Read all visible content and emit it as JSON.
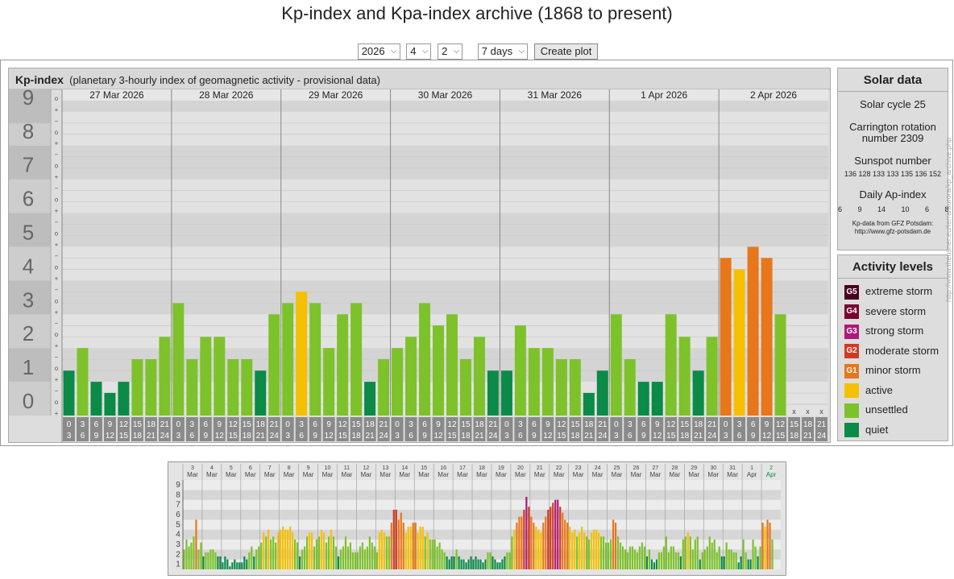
{
  "page_title": "Kp-index and Kpa-index archive (1868 to present)",
  "controls": {
    "year": "2026",
    "month": "4",
    "day": "2",
    "range": "7 days",
    "submit_label": "Create plot"
  },
  "kp_header": {
    "title": "Kp-index",
    "subtitle": "(planetary 3-hourly index of geomagnetic activity - provisional data)"
  },
  "colors": {
    "quiet": "#0b8a48",
    "unsettled": "#7dc22a",
    "active": "#f5c000",
    "minor": "#e8761a",
    "moderate": "#d23a20",
    "strong": "#b01878",
    "severe": "#7a0030",
    "extreme": "#4a0020"
  },
  "chart_data": {
    "type": "bar",
    "ylim": [
      0,
      9
    ],
    "y_ticks": [
      "0",
      "1",
      "2",
      "3",
      "4",
      "5",
      "6",
      "7",
      "8",
      "9"
    ],
    "sub_ticks": [
      "+",
      "o",
      "−"
    ],
    "days": [
      "27 Mar 2026",
      "28 Mar 2026",
      "29 Mar 2026",
      "30 Mar 2026",
      "31 Mar 2026",
      "1 Apr 2026",
      "2 Apr 2026"
    ],
    "hour_start": [
      "0",
      "3",
      "6",
      "9",
      "12",
      "15",
      "18",
      "21"
    ],
    "hour_end": [
      "3",
      "6",
      "9",
      "12",
      "15",
      "18",
      "21",
      "24"
    ],
    "missing_label": "x",
    "values": [
      [
        1.33,
        2.0,
        1.0,
        0.67,
        1.0,
        1.67,
        1.67,
        2.33
      ],
      [
        3.33,
        1.67,
        2.33,
        2.33,
        1.67,
        1.67,
        1.33,
        3.0
      ],
      [
        3.33,
        3.67,
        3.33,
        2.0,
        3.0,
        3.33,
        1.0,
        1.67
      ],
      [
        2.0,
        2.33,
        3.33,
        2.67,
        3.0,
        1.67,
        2.33,
        1.33
      ],
      [
        1.33,
        2.67,
        2.0,
        2.0,
        1.67,
        1.67,
        0.67,
        1.33
      ],
      [
        3.0,
        1.67,
        1.0,
        1.0,
        3.0,
        2.33,
        1.33,
        2.33
      ],
      [
        4.67,
        4.33,
        5.0,
        4.67,
        3.0,
        null,
        null,
        null
      ]
    ]
  },
  "solar": {
    "header": "Solar data",
    "cycle": "Solar cycle 25",
    "carrington_1": "Carrington rotation",
    "carrington_2": "number 2309",
    "sunspot_label": "Sunspot number",
    "sunspot_values": "136 128 133 133 135 136 152",
    "ap_label": "Daily Ap-index",
    "ap_values": "6   9   14   10   6   8   —",
    "source_1": "Kp-data from GFZ Potsdam:",
    "source_2": "http://www.gfz-potsdam.de"
  },
  "activity": {
    "header": "Activity levels",
    "levels": [
      {
        "code": "G5",
        "label": "extreme storm",
        "color": "#4a0020"
      },
      {
        "code": "G4",
        "label": "severe storm",
        "color": "#7a0030"
      },
      {
        "code": "G3",
        "label": "strong storm",
        "color": "#b01878"
      },
      {
        "code": "G2",
        "label": "moderate storm",
        "color": "#d23a20"
      },
      {
        "code": "G1",
        "label": "minor storm",
        "color": "#e8761a"
      },
      {
        "code": "",
        "label": "active",
        "color": "#f5c000"
      },
      {
        "code": "",
        "label": "unsettled",
        "color": "#7dc22a"
      },
      {
        "code": "",
        "label": "quiet",
        "color": "#0b8a48"
      }
    ]
  },
  "watermark": "http://www.theusner.eu/terra/aurora/kp_archive.php",
  "overview": {
    "type": "bar",
    "ylim": [
      0,
      9
    ],
    "y_ticks": [
      "1",
      "2",
      "3",
      "4",
      "5",
      "6",
      "7",
      "8",
      "9"
    ],
    "day_numbers": [
      "3",
      "4",
      "5",
      "6",
      "7",
      "8",
      "9",
      "10",
      "11",
      "12",
      "13",
      "14",
      "15",
      "16",
      "17",
      "18",
      "19",
      "20",
      "21",
      "22",
      "23",
      "24",
      "25",
      "26",
      "27",
      "28",
      "29",
      "30",
      "31",
      "1",
      "2"
    ],
    "month_labels": [
      "Mar",
      "Mar",
      "Mar",
      "Mar",
      "Mar",
      "Mar",
      "Mar",
      "Mar",
      "Mar",
      "Mar",
      "Mar",
      "Mar",
      "Mar",
      "Mar",
      "Mar",
      "Mar",
      "Mar",
      "Mar",
      "Mar",
      "Mar",
      "Mar",
      "Mar",
      "Mar",
      "Mar",
      "Mar",
      "Mar",
      "Mar",
      "Mar",
      "Mar",
      "Apr",
      "Apr"
    ],
    "daily_values": [
      [
        2.0,
        3.0,
        2.3,
        2.7,
        3.3,
        5.0,
        2.0,
        2.7
      ],
      [
        1.3,
        1.7,
        1.7,
        2.0,
        2.0,
        1.7,
        1.3,
        1.3
      ],
      [
        0.7,
        1.3,
        1.0,
        0.3,
        0.7,
        1.0,
        0.7,
        0.7
      ],
      [
        0.7,
        1.3,
        1.0,
        1.7,
        2.3,
        1.3,
        2.0,
        2.3
      ],
      [
        2.7,
        3.7,
        3.3,
        4.0,
        3.0,
        3.3,
        2.7,
        3.7
      ],
      [
        4.0,
        4.3,
        4.0,
        4.0,
        4.3,
        3.7,
        3.0,
        2.7
      ],
      [
        1.3,
        2.0,
        2.3,
        3.3,
        3.7,
        3.7,
        2.3,
        3.0
      ],
      [
        3.3,
        4.0,
        3.7,
        2.7,
        3.3,
        4.0,
        3.3,
        2.3
      ],
      [
        1.3,
        2.0,
        2.3,
        3.3,
        2.3,
        2.7,
        1.7,
        1.7
      ],
      [
        1.7,
        2.3,
        2.7,
        2.0,
        2.3,
        3.3,
        2.7,
        2.3
      ],
      [
        1.7,
        3.7,
        4.0,
        3.7,
        3.3,
        3.3,
        4.7,
        6.0
      ],
      [
        6.0,
        5.0,
        5.7,
        4.7,
        3.7,
        4.3,
        4.3,
        4.7
      ],
      [
        4.7,
        3.7,
        4.3,
        4.3,
        3.3,
        3.7,
        3.0,
        3.0
      ],
      [
        3.0,
        2.3,
        2.7,
        2.0,
        1.7,
        1.3,
        1.0,
        1.3
      ],
      [
        1.3,
        2.0,
        1.3,
        1.0,
        1.0,
        0.7,
        1.0,
        1.3
      ],
      [
        1.0,
        1.3,
        1.0,
        1.0,
        0.7,
        1.0,
        1.7,
        1.7
      ],
      [
        1.3,
        1.0,
        0.7,
        0.7,
        1.0,
        1.3,
        1.7,
        1.7
      ],
      [
        3.3,
        4.0,
        4.7,
        5.3,
        5.3,
        6.0,
        7.3,
        6.3
      ],
      [
        5.3,
        4.7,
        4.3,
        4.0,
        3.7,
        4.7,
        5.3,
        6.0
      ],
      [
        6.3,
        6.7,
        7.0,
        7.0,
        6.3,
        5.7,
        5.0,
        4.7
      ],
      [
        4.3,
        3.7,
        4.0,
        3.3,
        3.7,
        4.3,
        3.7,
        3.3
      ],
      [
        3.0,
        3.7,
        4.0,
        4.0,
        3.7,
        3.3,
        3.3,
        2.7
      ],
      [
        2.7,
        3.0,
        5.0,
        4.7,
        3.3,
        2.7,
        2.3,
        2.0
      ],
      [
        1.7,
        2.3,
        2.3,
        2.0,
        1.7,
        2.3,
        2.7,
        2.3
      ],
      [
        1.3,
        2.0,
        1.0,
        0.7,
        1.0,
        1.7,
        1.7,
        2.3
      ],
      [
        3.3,
        1.7,
        2.3,
        2.3,
        1.7,
        1.7,
        1.3,
        3.0
      ],
      [
        3.3,
        3.7,
        3.3,
        2.0,
        3.0,
        3.3,
        1.0,
        1.7
      ],
      [
        2.0,
        2.3,
        3.3,
        2.7,
        3.0,
        1.7,
        2.3,
        1.3
      ],
      [
        1.3,
        2.7,
        2.0,
        2.0,
        1.7,
        1.7,
        0.7,
        1.3
      ],
      [
        3.0,
        1.7,
        1.0,
        1.0,
        3.0,
        2.3,
        1.3,
        2.3
      ],
      [
        4.7,
        4.3,
        5.0,
        4.7,
        3.0
      ]
    ]
  }
}
